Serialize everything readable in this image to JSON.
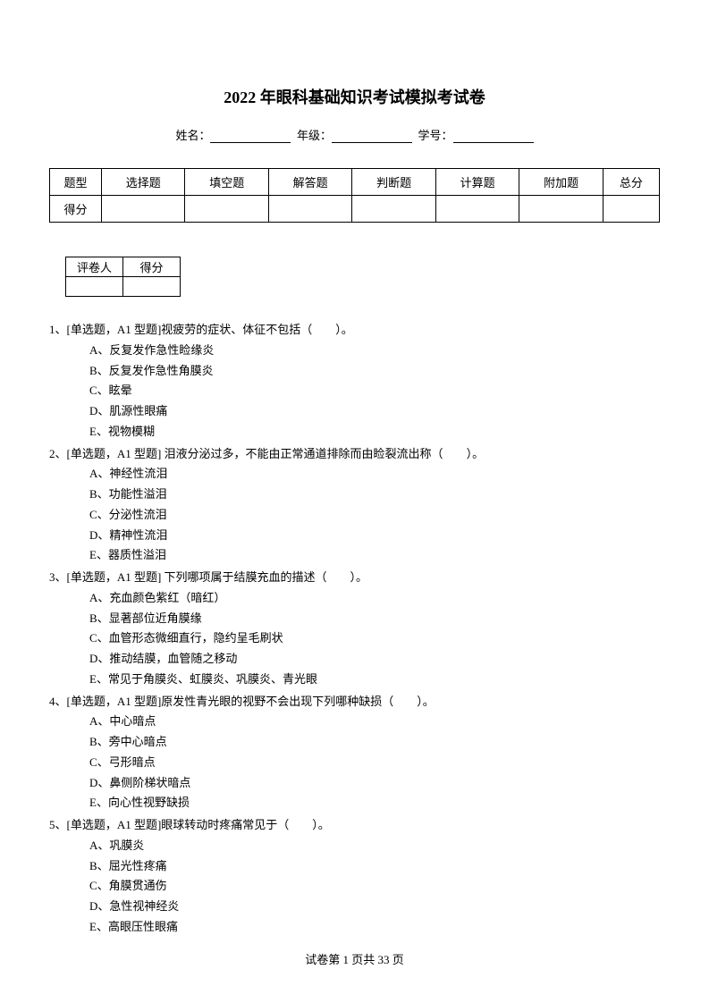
{
  "title": "2022 年眼科基础知识考试模拟考试卷",
  "info": {
    "name_label": "姓名：",
    "grade_label": "年级：",
    "id_label": "学号："
  },
  "score_table": {
    "row1": [
      "题型",
      "选择题",
      "填空题",
      "解答题",
      "判断题",
      "计算题",
      "附加题",
      "总分"
    ],
    "row2_label": "得分"
  },
  "grader_table": {
    "col1": "评卷人",
    "col2": "得分"
  },
  "questions": [
    {
      "num": "1、",
      "stem": "[单选题，A1 型题]视疲劳的症状、体征不包括（　　）。",
      "options": [
        "A、反复发作急性睑缘炎",
        "B、反复发作急性角膜炎",
        "C、眩晕",
        "D、肌源性眼痛",
        "E、视物模糊"
      ]
    },
    {
      "num": "2、",
      "stem": "[单选题，A1 型题] 泪液分泌过多，不能由正常通道排除而由睑裂流出称（　　）。",
      "options": [
        "A、神经性流泪",
        "B、功能性溢泪",
        "C、分泌性流泪",
        "D、精神性流泪",
        "E、器质性溢泪"
      ]
    },
    {
      "num": "3、",
      "stem": "[单选题，A1 型题] 下列哪项属于结膜充血的描述（　　）。",
      "options": [
        "A、充血颜色紫红（暗红）",
        "B、显著部位近角膜缘",
        "C、血管形态微细直行，隐约呈毛刷状",
        "D、推动结膜，血管随之移动",
        "E、常见于角膜炎、虹膜炎、巩膜炎、青光眼"
      ]
    },
    {
      "num": "4、",
      "stem": "[单选题，A1 型题]原发性青光眼的视野不会出现下列哪种缺损（　　）。",
      "options": [
        "A、中心暗点",
        "B、旁中心暗点",
        "C、弓形暗点",
        "D、鼻侧阶梯状暗点",
        "E、向心性视野缺损"
      ]
    },
    {
      "num": "5、",
      "stem": "[单选题，A1 型题]眼球转动时疼痛常见于（　　）。",
      "options": [
        "A、巩膜炎",
        "B、屈光性疼痛",
        "C、角膜贯通伤",
        "D、急性视神经炎",
        "E、高眼压性眼痛"
      ]
    }
  ],
  "footer": {
    "text": "试卷第 1 页共 33 页"
  }
}
